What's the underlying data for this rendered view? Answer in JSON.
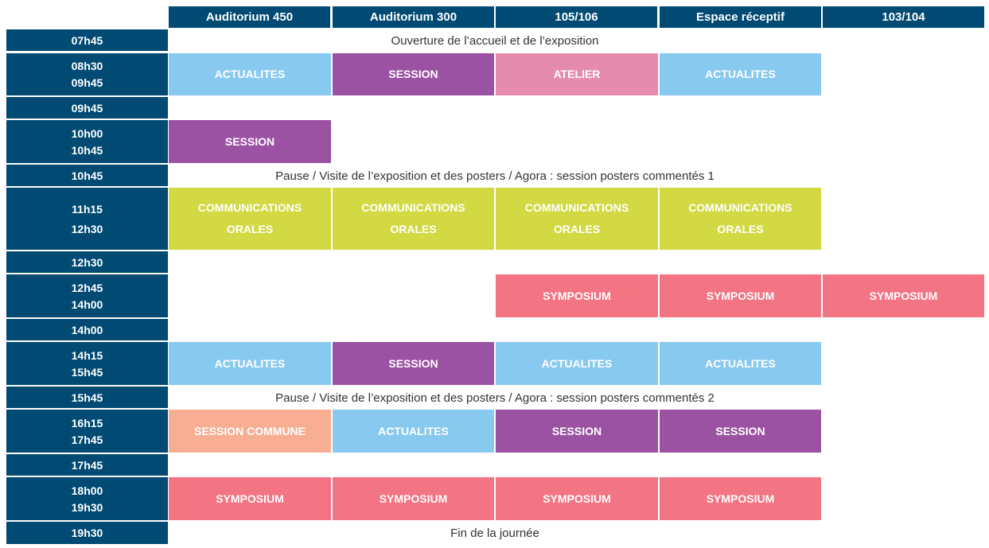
{
  "colors": {
    "header_bg": "#004a73",
    "actualites": "#88c9f0",
    "session": "#9b52a2",
    "atelier": "#e58bae",
    "communications": "#d2d943",
    "symposium": "#f37483",
    "session_commune": "#f7ae93"
  },
  "rooms": [
    "Auditorium 450",
    "Auditorium 300",
    "105/106",
    "Espace réceptif",
    "103/104"
  ],
  "times": {
    "t0745": "07h45",
    "t0830": "08h30",
    "t0945a": "09h45",
    "t0945b": "09h45",
    "t1000": "10h00",
    "t1045a": "10h45",
    "t1045b": "10h45",
    "t1115": "11h15",
    "t1230a": "12h30",
    "t1230b": "12h30",
    "t1245": "12h45",
    "t1400a": "14h00",
    "t1400b": "14h00",
    "t1415": "14h15",
    "t1545a": "15h45",
    "t1545b": "15h45",
    "t1615": "16h15",
    "t1745a": "17h45",
    "t1745b": "17h45",
    "t1800": "18h00",
    "t1930a": "19h30",
    "t1930b": "19h30"
  },
  "banners": {
    "opening": "Ouverture de l’accueil et de l’exposition",
    "pause1": "Pause / Visite de l’exposition et des posters / Agora : session posters commentés 1",
    "pause2": "Pause / Visite de l’exposition et des posters / Agora : session posters commentés 2",
    "end": "Fin de la journée"
  },
  "labels": {
    "actualites": "ACTUALITES",
    "session": "SESSION",
    "atelier": "ATELIER",
    "communications_1": "COMMUNICATIONS",
    "communications_2": "ORALES",
    "symposium": "SYMPOSIUM",
    "session_commune": "SESSION COMMUNE"
  }
}
